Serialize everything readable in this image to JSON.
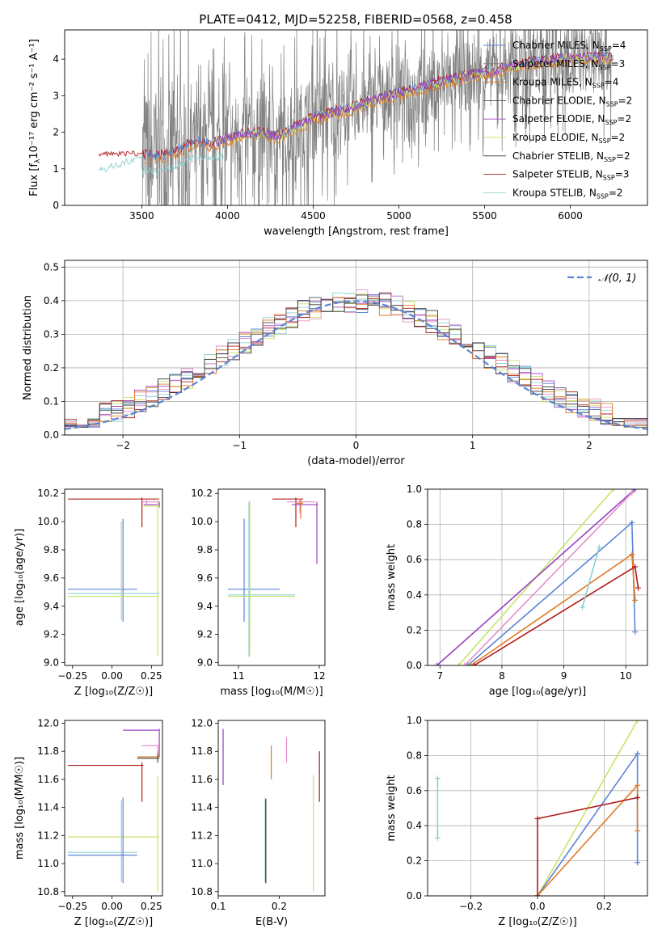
{
  "figure": {
    "title": "PLATE=0412, MJD=52258, FIBERID=0568, z=0.458"
  },
  "colors": {
    "Chabrier MILES": "#5b85d6",
    "Salpeter MILES": "#7a7a7a",
    "Kroupa MILES": "#e07b24",
    "Chabrier ELODIE": "#555555",
    "Salpeter ELODIE": "#9b3fbf",
    "Kroupa ELODIE": "#c8e36a",
    "Chabrier STELIB": "#333333",
    "Salpeter STELIB": "#b01c1c",
    "Kroupa STELIB": "#8ecfcf",
    "pink": "#e58fc8",
    "spectrum": "#808080"
  },
  "chart_data": [
    {
      "id": "spectrum",
      "type": "line",
      "xlabel": "wavelength [Angstrom, rest frame]",
      "ylabel_text": "Flux [f",
      "ylabel_sub": "λ",
      "ylabel_rest": "10⁻¹⁷ erg cm⁻² s⁻¹ A⁻¹]",
      "xlim": [
        3050,
        6450
      ],
      "ylim": [
        0,
        4.8
      ],
      "xticks": [
        3500,
        4000,
        4500,
        5000,
        5500,
        6000
      ],
      "yticks": [
        0,
        1,
        2,
        3,
        4
      ],
      "legend_position": "upper-right",
      "legend": [
        {
          "label": "Chabrier MILES, N",
          "sub": "SSP",
          "suffix": "=4"
        },
        {
          "label": "Salpeter MILES, N",
          "sub": "SSP",
          "suffix": "=3"
        },
        {
          "label": "Kroupa MILES, N",
          "sub": "SSP",
          "suffix": "=4"
        },
        {
          "label": "Chabrier ELODIE, N",
          "sub": "SSP",
          "suffix": "=2"
        },
        {
          "label": "Salpeter ELODIE, N",
          "sub": "SSP",
          "suffix": "=2"
        },
        {
          "label": "Kroupa ELODIE, N",
          "sub": "SSP",
          "suffix": "=2"
        },
        {
          "label": "Chabrier STELIB, N",
          "sub": "SSP",
          "suffix": "=2"
        },
        {
          "label": "Salpeter STELIB, N",
          "sub": "SSP",
          "suffix": "=3"
        },
        {
          "label": "Kroupa STELIB, N",
          "sub": "SSP",
          "suffix": "=2"
        }
      ],
      "model_trend": [
        [
          3250,
          1.42
        ],
        [
          3400,
          1.45
        ],
        [
          3500,
          1.35
        ],
        [
          3600,
          1.32
        ],
        [
          3700,
          1.45
        ],
        [
          3800,
          1.72
        ],
        [
          3900,
          1.66
        ],
        [
          4000,
          1.83
        ],
        [
          4100,
          1.92
        ],
        [
          4200,
          1.97
        ],
        [
          4300,
          1.88
        ],
        [
          4400,
          2.12
        ],
        [
          4500,
          2.38
        ],
        [
          4600,
          2.52
        ],
        [
          4700,
          2.62
        ],
        [
          4800,
          2.78
        ],
        [
          4900,
          2.93
        ],
        [
          5000,
          3.08
        ],
        [
          5100,
          3.15
        ],
        [
          5200,
          3.32
        ],
        [
          5300,
          3.42
        ],
        [
          5400,
          3.52
        ],
        [
          5500,
          3.62
        ],
        [
          5600,
          3.72
        ],
        [
          5700,
          3.82
        ],
        [
          5800,
          3.92
        ],
        [
          5900,
          3.97
        ],
        [
          6000,
          4.03
        ],
        [
          6100,
          4.02
        ],
        [
          6200,
          4.05
        ]
      ]
    },
    {
      "id": "residuals",
      "type": "line",
      "xlabel": "(data-model)/error",
      "ylabel": "Normed distribution",
      "xlim": [
        -2.5,
        2.5
      ],
      "ylim": [
        0,
        0.52
      ],
      "xticks": [
        -2,
        -1,
        0,
        1,
        2
      ],
      "xtick_labels": [
        "−2",
        "−1",
        "0",
        "1",
        "2"
      ],
      "yticks": [
        0,
        0.1,
        0.2,
        0.3,
        0.4,
        0.5
      ],
      "grid": true,
      "legend": [
        {
          "label": "𝒩(0, 1)"
        }
      ],
      "legend_position": "upper-right",
      "curve": "standard normal N(0,1)",
      "histogram_bin_width": 0.1,
      "histogram_x_start": -2.5
    },
    {
      "id": "age-vs-Z",
      "type": "scatter",
      "xlabel": "Z [log₁₀(Z/Z☉)]",
      "ylabel": "age  [log₁₀(age/yr)]",
      "xlim": [
        -0.3,
        0.32
      ],
      "ylim": [
        8.98,
        10.23
      ],
      "xticks": [
        -0.25,
        0.0,
        0.25
      ],
      "yticks": [
        9.0,
        9.2,
        9.4,
        9.6,
        9.8,
        10.0,
        10.2
      ],
      "errorbars": [
        {
          "model": "Salpeter STELIB",
          "h": [
            -0.28,
            0.3,
            10.16
          ],
          "v": [
            0.19,
            9.96,
            10.17
          ]
        },
        {
          "model": "pink",
          "h": [
            0.19,
            0.3,
            10.14
          ],
          "v": [
            0.22,
            10.12,
            10.16
          ]
        },
        {
          "model": "Salpeter ELODIE",
          "h": [
            0.2,
            0.3,
            10.12
          ],
          "v": [
            0.3,
            10.1,
            10.14
          ]
        },
        {
          "model": "Kroupa ELODIE",
          "h": [
            0.2,
            0.3,
            10.11
          ],
          "v": [
            0.29,
            9.05,
            10.17
          ]
        },
        {
          "model": "Chabrier MILES",
          "h": [
            -0.28,
            0.16,
            9.52
          ],
          "v": [
            0.07,
            9.29,
            10.02
          ]
        },
        {
          "model": "Kroupa STELIB",
          "h": [
            -0.28,
            0.3,
            9.49
          ],
          "v": [
            0.06,
            9.3,
            10.0
          ]
        },
        {
          "model": "Kroupa ELODIE",
          "h": [
            -0.28,
            0.3,
            9.47
          ],
          "v": [
            0.06,
            9.3,
            10.0
          ]
        }
      ]
    },
    {
      "id": "age-vs-mass",
      "type": "scatter",
      "xlabel": "mass [log₁₀(M/M☉)]",
      "xlim": [
        10.75,
        12.07
      ],
      "ylim": [
        8.98,
        10.23
      ],
      "xticks": [
        11,
        12
      ],
      "yticks": [
        9.0,
        9.2,
        9.4,
        9.6,
        9.8,
        10.0,
        10.2
      ],
      "errorbars": [
        {
          "model": "Salpeter STELIB",
          "h": [
            11.42,
            11.8,
            10.16
          ],
          "v": [
            11.71,
            9.96,
            10.17
          ]
        },
        {
          "model": "pink",
          "h": [
            11.6,
            11.95,
            10.14
          ],
          "v": [
            11.76,
            10.06,
            10.16
          ]
        },
        {
          "model": "Salpeter ELODIE",
          "h": [
            11.66,
            11.98,
            10.12
          ],
          "v": [
            11.97,
            9.7,
            10.14
          ]
        },
        {
          "model": "Kroupa MILES",
          "h": [
            11.72,
            11.8,
            10.13
          ],
          "v": [
            11.77,
            10.02,
            10.16
          ]
        },
        {
          "model": "Chabrier MILES",
          "h": [
            10.87,
            11.51,
            9.52
          ],
          "v": [
            11.07,
            9.29,
            10.02
          ]
        },
        {
          "model": "Kroupa STELIB",
          "h": [
            10.87,
            11.7,
            9.48
          ],
          "v": [
            11.13,
            9.04,
            10.14
          ]
        },
        {
          "model": "Kroupa ELODIE",
          "h": [
            10.87,
            11.7,
            9.47
          ],
          "v": [
            11.14,
            9.05,
            10.15
          ]
        }
      ]
    },
    {
      "id": "mass-weight-vs-age",
      "type": "line",
      "xlabel": "age  [log₁₀(age/yr)]",
      "ylabel": "mass weight",
      "xlim": [
        6.8,
        10.35
      ],
      "ylim": [
        0,
        1.0
      ],
      "xticks": [
        7,
        8,
        9,
        10
      ],
      "yticks": [
        0.0,
        0.2,
        0.4,
        0.6,
        0.8,
        1.0
      ],
      "grid": true,
      "series": [
        {
          "model": "Kroupa ELODIE",
          "x": [
            7.3,
            9.8
          ],
          "y": [
            0.0,
            1.0
          ]
        },
        {
          "model": "Salpeter ELODIE",
          "x": [
            6.95,
            10.15
          ],
          "y": [
            0.0,
            1.0
          ]
        },
        {
          "model": "pink",
          "x": [
            7.4,
            10.1
          ],
          "y": [
            0.0,
            0.98
          ]
        },
        {
          "model": "Chabrier MILES",
          "x": [
            7.45,
            10.1,
            10.15
          ],
          "y": [
            0.0,
            0.81,
            0.19
          ]
        },
        {
          "model": "Kroupa MILES",
          "x": [
            7.5,
            10.1,
            10.15
          ],
          "y": [
            0.0,
            0.63,
            0.37
          ]
        },
        {
          "model": "Salpeter STELIB",
          "x": [
            7.55,
            10.15,
            10.2
          ],
          "y": [
            0.0,
            0.56,
            0.44
          ]
        },
        {
          "model": "Kroupa STELIB",
          "x": [
            9.3,
            9.57
          ],
          "y": [
            0.33,
            0.67
          ]
        }
      ]
    },
    {
      "id": "mass-vs-Z",
      "type": "scatter",
      "xlabel": "Z [log₁₀(Z/Z☉)]",
      "ylabel": "mass [log₁₀(M/M☉)]",
      "xlim": [
        -0.3,
        0.32
      ],
      "ylim": [
        10.77,
        12.02
      ],
      "xticks": [
        -0.25,
        0.0,
        0.25
      ],
      "yticks": [
        10.8,
        11.0,
        11.2,
        11.4,
        11.6,
        11.8,
        12.0
      ],
      "errorbars": [
        {
          "model": "Salpeter ELODIE",
          "h": [
            0.07,
            0.3,
            11.95
          ],
          "v": [
            0.3,
            11.76,
            11.96
          ]
        },
        {
          "model": "pink",
          "h": [
            0.19,
            0.3,
            11.84
          ],
          "v": [
            0.29,
            11.76,
            11.84
          ]
        },
        {
          "model": "Kroupa MILES",
          "h": [
            0.16,
            0.3,
            11.76
          ],
          "v": [
            0.29,
            11.72,
            11.8
          ]
        },
        {
          "model": "Chabrier ELODIE",
          "h": [
            0.16,
            0.3,
            11.75
          ],
          "v": [
            0.29,
            11.72,
            11.78
          ]
        },
        {
          "model": "Salpeter STELIB",
          "h": [
            -0.28,
            0.2,
            11.7
          ],
          "v": [
            0.19,
            11.44,
            11.72
          ]
        },
        {
          "model": "Kroupa ELODIE",
          "h": [
            -0.28,
            0.3,
            11.19
          ],
          "v": [
            0.29,
            10.8,
            11.62
          ]
        },
        {
          "model": "Kroupa STELIB",
          "h": [
            -0.28,
            0.16,
            11.08
          ],
          "v": [
            0.06,
            10.87,
            11.45
          ]
        },
        {
          "model": "Chabrier MILES",
          "h": [
            -0.28,
            0.16,
            11.06
          ],
          "v": [
            0.07,
            10.86,
            11.47
          ]
        }
      ]
    },
    {
      "id": "mass-vs-EBV",
      "type": "scatter",
      "xlabel": "E(B-V)",
      "xlim": [
        0.1,
        0.275
      ],
      "ylim": [
        10.77,
        12.02
      ],
      "xticks": [
        0.1,
        0.2
      ],
      "yticks": [
        10.8,
        11.0,
        11.2,
        11.4,
        11.6,
        11.8,
        12.0
      ],
      "errorbars": [
        {
          "model": "Salpeter ELODIE",
          "v": [
            0.108,
            11.56,
            11.96
          ]
        },
        {
          "model": "Kroupa MILES",
          "v": [
            0.187,
            11.6,
            11.84
          ]
        },
        {
          "model": "pink",
          "v": [
            0.212,
            11.72,
            11.9
          ]
        },
        {
          "model": "Salpeter STELIB",
          "v": [
            0.266,
            11.44,
            11.8
          ]
        },
        {
          "model": "Kroupa ELODIE",
          "v": [
            0.256,
            10.8,
            11.63
          ]
        },
        {
          "model": "Kroupa STELIB",
          "v": [
            0.177,
            10.87,
            11.47
          ]
        },
        {
          "model": "Chabrier STELIB",
          "v": [
            0.178,
            10.86,
            11.46
          ]
        }
      ]
    },
    {
      "id": "mass-weight-vs-Z",
      "type": "line",
      "xlabel": "Z [log₁₀(Z/Z☉)]",
      "ylabel": "mass weight",
      "xlim": [
        -0.33,
        0.33
      ],
      "ylim": [
        0,
        1.0
      ],
      "xticks": [
        -0.2,
        0.0,
        0.2
      ],
      "xtick_labels": [
        "−0.2",
        "0.0",
        "0.2"
      ],
      "yticks": [
        0.0,
        0.2,
        0.4,
        0.6,
        0.8,
        1.0
      ],
      "grid": true,
      "series": [
        {
          "model": "Kroupa STELIB",
          "x": [
            -0.3,
            -0.3
          ],
          "y": [
            0.33,
            0.67
          ]
        },
        {
          "model": "Kroupa ELODIE",
          "x": [
            0.0,
            0.3
          ],
          "y": [
            0.0,
            1.0
          ]
        },
        {
          "model": "Chabrier MILES",
          "x": [
            0.0,
            0.3,
            0.3
          ],
          "y": [
            0.0,
            0.81,
            0.19
          ]
        },
        {
          "model": "Kroupa MILES",
          "x": [
            0.0,
            0.3,
            0.3
          ],
          "y": [
            0.0,
            0.63,
            0.37
          ]
        },
        {
          "model": "Salpeter STELIB",
          "x": [
            0.0,
            0.0,
            0.3
          ],
          "y": [
            0.0,
            0.44,
            0.56
          ]
        }
      ]
    }
  ]
}
